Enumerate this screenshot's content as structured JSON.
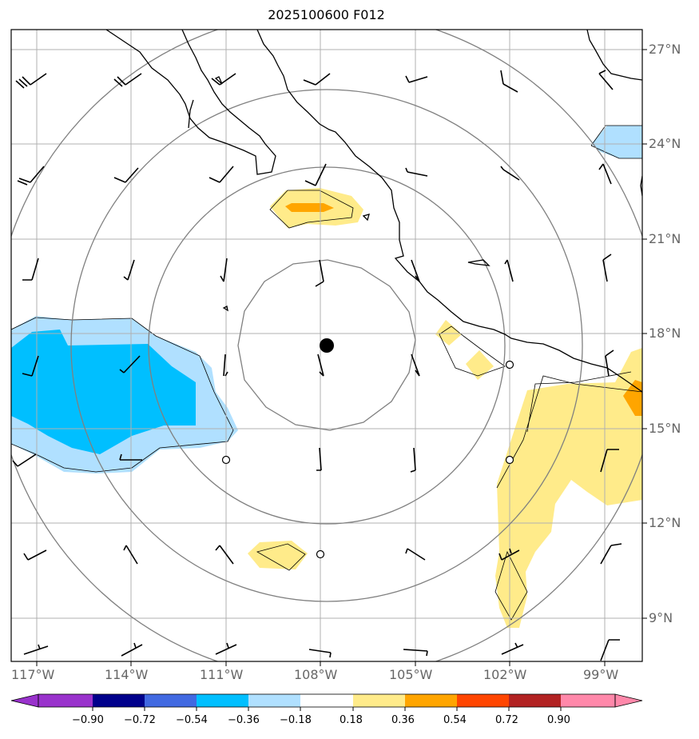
{
  "title": "2025100600 F012",
  "colors": {
    "weak_positive": "#ffeb8a",
    "strong_positive": "#ffa500",
    "weak_negative": "#aadcff",
    "strong_negative": "#00bfff",
    "grid": "#b0b0b0",
    "range_ring": "#808080",
    "coast": "#000000"
  },
  "lat_labels": [
    "27°N",
    "24°N",
    "21°N",
    "18°N",
    "15°N",
    "12°N",
    "9°N"
  ],
  "lon_labels": [
    "117°W",
    "114°W",
    "111°W",
    "108°W",
    "105°W",
    "102°W",
    "99°W"
  ],
  "center_marker": "filled-circle-storm-center",
  "colorbar": {
    "colors": [
      "#9932cc",
      "#00008b",
      "#4169e1",
      "#00bfff",
      "#b0e0ff",
      "#ffffff",
      "#ffeb8a",
      "#ffa500",
      "#ff4500",
      "#b22222",
      "#ff88aa"
    ],
    "ticks": [
      "−0.90",
      "−0.72",
      "−0.54",
      "−0.36",
      "−0.18",
      "0.18",
      "0.36",
      "0.54",
      "0.72",
      "0.90"
    ]
  }
}
